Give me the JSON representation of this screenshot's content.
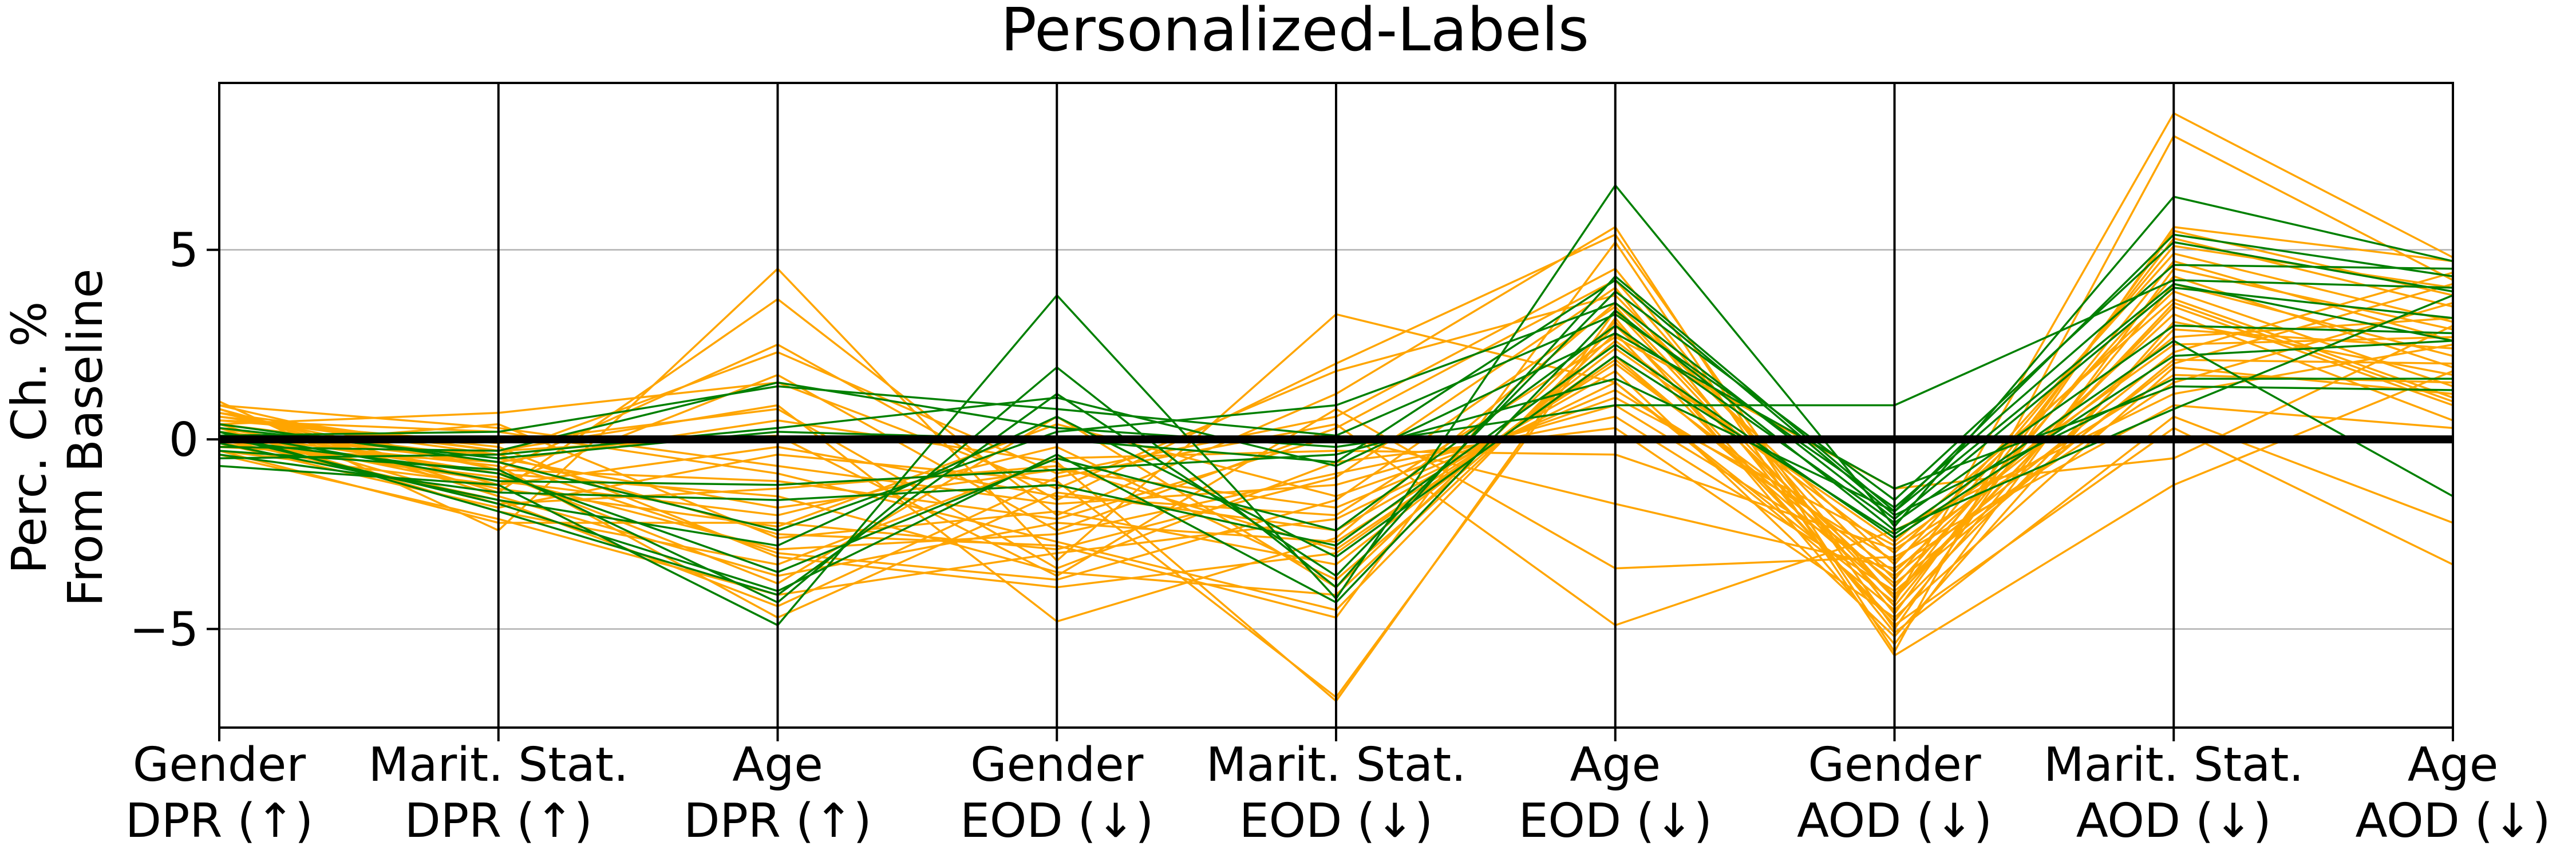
{
  "chart_data": {
    "type": "line",
    "title": "Personalized-Labels",
    "ylabel_lines": [
      "Perc. Ch. %",
      "From Baseline"
    ],
    "ylim": [
      -7.6,
      9.4
    ],
    "yticks": [
      -5,
      0,
      5
    ],
    "ytick_labels": [
      "−5",
      "0",
      "5"
    ],
    "grid": "horizontal",
    "baseline": 0,
    "axes": [
      {
        "line1": "Gender",
        "line2": "DPR (↑)"
      },
      {
        "line1": "Marit. Stat.",
        "line2": "DPR (↑)"
      },
      {
        "line1": "Age",
        "line2": "DPR (↑)"
      },
      {
        "line1": "Gender",
        "line2": "EOD (↓)"
      },
      {
        "line1": "Marit. Stat.",
        "line2": "EOD (↓)"
      },
      {
        "line1": "Age",
        "line2": "EOD (↓)"
      },
      {
        "line1": "Gender",
        "line2": "AOD (↓)"
      },
      {
        "line1": "Marit. Stat.",
        "line2": "AOD (↓)"
      },
      {
        "line1": "Age",
        "line2": "AOD (↓)"
      }
    ],
    "colors": {
      "orange": "#ffa500",
      "green": "#008000",
      "baseline": "#000000"
    },
    "series_green": [
      [
        -0.7,
        -1.2,
        -4.9,
        3.8,
        -4.2,
        6.7,
        -2.3,
        6.4,
        4.7
      ],
      [
        -0.3,
        -0.8,
        -4.3,
        1.9,
        -3.9,
        4.3,
        -1.9,
        5.4,
        4.3
      ],
      [
        0.2,
        -1.9,
        -4.1,
        1.2,
        -3.6,
        3.9,
        -1.6,
        5.2,
        3.9
      ],
      [
        0.1,
        0.2,
        1.4,
        0.8,
        0.1,
        3.3,
        -1.8,
        4.6,
        4.5
      ],
      [
        -0.2,
        -0.3,
        1.5,
        0.3,
        -0.2,
        0.9,
        0.9,
        4.2,
        4.0
      ],
      [
        0.4,
        -0.6,
        -2.4,
        0.2,
        0.9,
        3.6,
        -2.1,
        4.0,
        3.2
      ],
      [
        -0.4,
        -1.4,
        -1.6,
        -1.2,
        -2.8,
        2.5,
        -2.6,
        2.2,
        2.6
      ],
      [
        0.3,
        -0.5,
        0.2,
        0.0,
        -0.6,
        4.2,
        -2.0,
        1.6,
        1.6
      ],
      [
        0.0,
        -0.9,
        -3.5,
        -0.5,
        -2.4,
        3.0,
        -2.2,
        3.0,
        2.8
      ],
      [
        -0.1,
        -1.6,
        -2.8,
        0.6,
        -3.1,
        2.2,
        -2.5,
        2.6,
        -1.5
      ],
      [
        0.2,
        -1.1,
        -1.2,
        -0.8,
        -0.4,
        1.6,
        -1.9,
        4.1,
        2.6
      ],
      [
        -0.5,
        -0.4,
        0.3,
        1.1,
        -0.7,
        2.8,
        -1.3,
        1.4,
        1.3
      ],
      [
        0.1,
        -1.7,
        -4.0,
        -0.4,
        -4.3,
        3.4,
        -2.4,
        0.8,
        3.8
      ]
    ],
    "series_orange": [
      [
        1.0,
        -2.4,
        4.5,
        -3.2,
        3.3,
        1.5,
        -4.3,
        8.6,
        4.8
      ],
      [
        0.8,
        -1.4,
        3.7,
        -2.0,
        1.2,
        5.6,
        -5.6,
        8.0,
        4.2
      ],
      [
        0.9,
        -0.8,
        2.5,
        -1.6,
        2.0,
        5.4,
        -5.0,
        5.6,
        4.7
      ],
      [
        0.6,
        -0.4,
        2.3,
        -0.9,
        0.6,
        4.5,
        -4.6,
        5.5,
        3.8
      ],
      [
        -0.3,
        -1.2,
        1.7,
        -2.4,
        0.3,
        4.2,
        -4.2,
        5.3,
        3.5
      ],
      [
        0.4,
        0.7,
        1.5,
        -1.3,
        1.8,
        3.8,
        -3.7,
        5.1,
        4.0
      ],
      [
        0.7,
        -0.3,
        0.9,
        -4.8,
        -2.6,
        3.6,
        -3.3,
        4.9,
        3.1
      ],
      [
        0.2,
        -0.6,
        0.5,
        -0.6,
        -6.9,
        3.4,
        -4.4,
        4.7,
        2.6
      ],
      [
        -0.1,
        -1.8,
        -0.4,
        -1.1,
        -6.8,
        3.2,
        -5.4,
        4.5,
        2.9
      ],
      [
        0.5,
        0.2,
        -0.9,
        -2.7,
        -4.5,
        3.0,
        -3.9,
        4.3,
        1.9
      ],
      [
        0.3,
        -0.9,
        -1.5,
        -3.5,
        -4.1,
        2.8,
        -4.8,
        4.1,
        2.2
      ],
      [
        0.0,
        -1.1,
        -2.0,
        -0.2,
        -3.7,
        2.6,
        -3.0,
        3.9,
        1.4
      ],
      [
        -0.2,
        0.4,
        -2.6,
        -1.9,
        -3.3,
        2.4,
        -2.7,
        3.7,
        1.1
      ],
      [
        0.6,
        -0.2,
        -3.1,
        -3.9,
        -3.0,
        2.2,
        -4.1,
        3.5,
        0.9
      ],
      [
        0.8,
        -1.5,
        -3.6,
        -2.2,
        -2.7,
        2.0,
        -3.5,
        3.3,
        0.5
      ],
      [
        0.1,
        -0.7,
        -4.7,
        -1.4,
        -2.4,
        1.8,
        -5.2,
        3.1,
        1.7
      ],
      [
        -0.4,
        -2.1,
        -4.1,
        -3.0,
        -2.1,
        1.5,
        -4.5,
        2.9,
        2.4
      ],
      [
        0.4,
        -0.5,
        -1.8,
        -0.8,
        -1.8,
        1.3,
        -3.2,
        2.7,
        3.2
      ],
      [
        0.2,
        -1.3,
        -2.3,
        0.4,
        -1.5,
        1.1,
        -2.8,
        2.5,
        2.7
      ],
      [
        0.9,
        0.3,
        -0.7,
        -1.7,
        -1.2,
        0.9,
        -3.6,
        2.3,
        4.4
      ],
      [
        -0.1,
        -1.0,
        -2.9,
        -2.5,
        -0.9,
        0.6,
        -4.0,
        2.1,
        2.0
      ],
      [
        0.5,
        -0.1,
        0.8,
        -3.4,
        -0.6,
        0.3,
        -4.7,
        1.9,
        1.2
      ],
      [
        0.3,
        -1.9,
        -3.3,
        -0.5,
        -0.3,
        -0.4,
        -2.9,
        1.7,
        1.5
      ],
      [
        0.7,
        -0.8,
        -1.1,
        -2.1,
        0.1,
        -1.7,
        -3.4,
        1.5,
        3.6
      ],
      [
        0.0,
        -1.6,
        -4.4,
        -1.0,
        0.4,
        -4.9,
        -2.4,
        1.2,
        2.5
      ],
      [
        0.6,
        -0.3,
        0.1,
        -3.6,
        0.8,
        -3.4,
        -3.1,
        0.9,
        0.3
      ],
      [
        -0.3,
        -2.2,
        -2.2,
        -2.9,
        -1.0,
        4.0,
        -5.1,
        0.6,
        -2.2
      ],
      [
        0.2,
        -0.9,
        -3.8,
        0.6,
        -3.9,
        3.1,
        -4.9,
        0.3,
        -3.3
      ],
      [
        0.8,
        -1.2,
        -0.2,
        -1.5,
        -2.0,
        2.7,
        -1.3,
        -0.5,
        3.0
      ],
      [
        0.1,
        -0.4,
        -2.5,
        -2.8,
        -4.7,
        5.2,
        -5.7,
        -1.2,
        1.8
      ],
      [
        0.4,
        -1.7,
        -1.3,
        -0.7,
        -2.9,
        2.1,
        -3.8,
        2.0,
        4.1
      ],
      [
        -0.2,
        -0.6,
        -3.0,
        -3.7,
        -1.6,
        3.5,
        -4.2,
        3.6,
        1.0
      ]
    ]
  }
}
